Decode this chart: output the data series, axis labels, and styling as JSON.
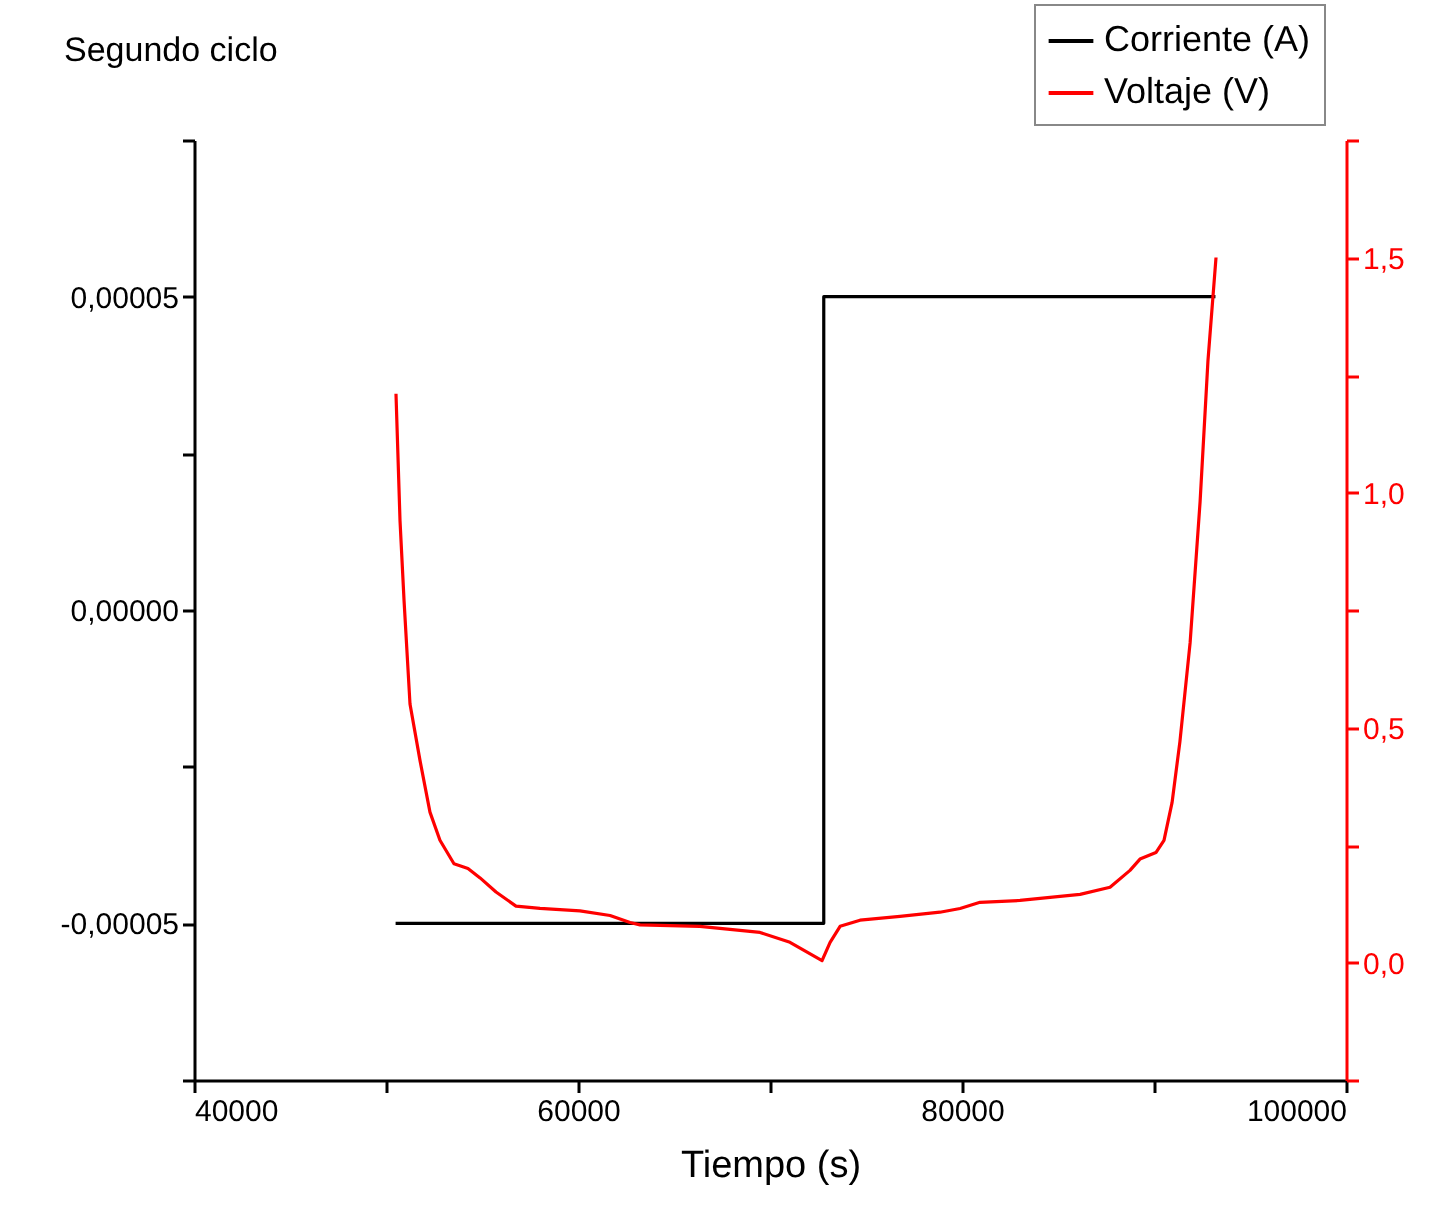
{
  "chart_data": {
    "type": "line",
    "title": "Segundo ciclo",
    "xlabel": "Tiempo (s)",
    "xlim": [
      40000,
      100000
    ],
    "xticks": [
      40000,
      {
        "value": 50000,
        "label": null
      },
      60000,
      {
        "value": 70000,
        "label": null
      },
      80000,
      {
        "value": 90000,
        "label": null
      },
      100000
    ],
    "ylim": [
      -7.5e-05,
      7.5e-05
    ],
    "yticks": [
      {
        "value": -7.5e-05,
        "label": null
      },
      {
        "value": -5e-05,
        "label": "-0,00005"
      },
      {
        "value": -2.5e-05,
        "label": null
      },
      {
        "value": 0,
        "label": "0,00000"
      },
      {
        "value": 2.5e-05,
        "label": null
      },
      {
        "value": 5e-05,
        "label": "0,00005"
      },
      {
        "value": 7.5e-05,
        "label": null
      }
    ],
    "y2lim": [
      -0.25,
      1.75
    ],
    "y2ticks": [
      {
        "value": -0.25,
        "label": null
      },
      {
        "value": 0,
        "label": "0,0"
      },
      {
        "value": 0.25,
        "label": null
      },
      {
        "value": 0.5,
        "label": "0,5"
      },
      {
        "value": 0.75,
        "label": null
      },
      {
        "value": 1,
        "label": "1,0"
      },
      {
        "value": 1.25,
        "label": null
      },
      {
        "value": 1.5,
        "label": "1,5"
      },
      {
        "value": 1.75,
        "label": null
      }
    ],
    "grid": false,
    "legend": "top right",
    "marker": "none",
    "line_style": "solid",
    "series": [
      {
        "name": "Corriente (A)",
        "color": "#000000",
        "x": [
          50500,
          72800,
          72800,
          93200
        ],
        "values": [
          -5e-05,
          -5e-05,
          5e-05,
          5e-05
        ]
      },
      {
        "name": "Voltaje (V)",
        "color": "#ff0000",
        "axis": "y2",
        "x": [
          50520,
          50730,
          50940,
          51250,
          51770,
          52290,
          52810,
          53540,
          54270,
          54900,
          55730,
          56770,
          58020,
          60100,
          61670,
          62710,
          63230,
          66350,
          69480,
          71040,
          72710,
          73130,
          73650,
          74690,
          76770,
          78850,
          79900,
          80940,
          83020,
          86150,
          87710,
          88750,
          89270,
          90100,
          90520,
          90940,
          91350,
          91880,
          92400,
          92810,
          93230
        ],
        "values": [
          1.21,
          0.94,
          0.77,
          0.55,
          0.43,
          0.32,
          0.26,
          0.21,
          0.2,
          0.18,
          0.15,
          0.12,
          0.115,
          0.11,
          0.1,
          0.085,
          0.08,
          0.077,
          0.064,
          0.043,
          0.004,
          0.043,
          0.077,
          0.09,
          0.098,
          0.107,
          0.115,
          0.128,
          0.132,
          0.145,
          0.16,
          0.196,
          0.22,
          0.234,
          0.26,
          0.34,
          0.47,
          0.68,
          0.98,
          1.28,
          1.5
        ]
      }
    ]
  }
}
